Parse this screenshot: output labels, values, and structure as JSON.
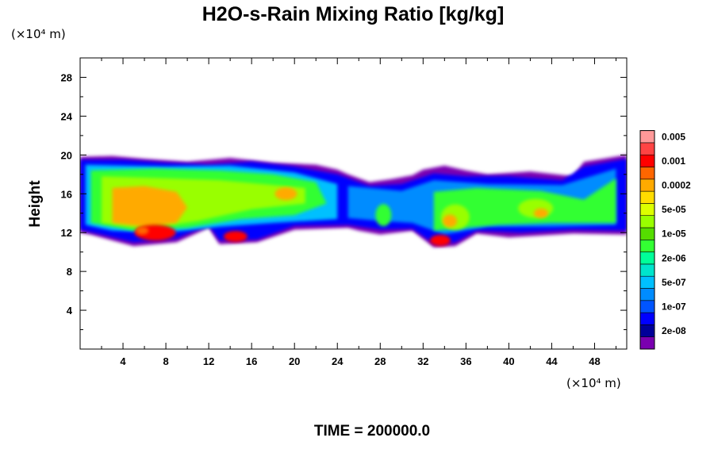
{
  "chart_data": {
    "type": "heatmap",
    "title": "H2O-s-Rain Mixing Ratio [kg/kg]",
    "ylabel": "Height",
    "xunit": "(×10⁴ m)",
    "yunit": "(×10⁴ m)",
    "xlim": [
      0,
      51
    ],
    "ylim": [
      0,
      30
    ],
    "xticks": [
      4,
      8,
      12,
      16,
      20,
      24,
      28,
      32,
      36,
      40,
      44,
      48
    ],
    "xtick_labels": [
      "4",
      "8",
      "12",
      "16",
      "20",
      "24",
      "28",
      "32",
      "36",
      "40",
      "44",
      "48"
    ],
    "yticks": [
      4,
      8,
      12,
      16,
      20,
      24,
      28
    ],
    "ytick_labels": [
      "4",
      "8",
      "12",
      "16",
      "20",
      "24",
      "28"
    ],
    "time_label": "TIME = 200000.0",
    "colorbar": {
      "colors": [
        "#7a00b0",
        "#000099",
        "#0000ff",
        "#0055ff",
        "#008cff",
        "#00c0ff",
        "#00e5cc",
        "#00ff99",
        "#33ff33",
        "#55dd00",
        "#99ff00",
        "#ddff00",
        "#ffdd00",
        "#ffaa00",
        "#ff6600",
        "#ff0000",
        "#ff4444",
        "#ff9999"
      ],
      "labels": [
        {
          "index": 1,
          "text": "2e-08"
        },
        {
          "index": 3,
          "text": "1e-07"
        },
        {
          "index": 5,
          "text": "5e-07"
        },
        {
          "index": 7,
          "text": "2e-06"
        },
        {
          "index": 9,
          "text": "1e-05"
        },
        {
          "index": 11,
          "text": "5e-05"
        },
        {
          "index": 13,
          "text": "0.0002"
        },
        {
          "index": 15,
          "text": "0.001"
        },
        {
          "index": 17,
          "text": "0.005"
        }
      ]
    },
    "cloud_regions": [
      {
        "x0": 0,
        "x1": 12,
        "y_bottom": 11,
        "y_top": 19.8,
        "max_level": "0.005"
      },
      {
        "x0": 12,
        "x1": 25,
        "y_bottom": 12.5,
        "y_top": 19.5,
        "max_level": "0.0002"
      },
      {
        "x0": 13,
        "x1": 16.5,
        "y_bottom": 10.8,
        "y_top": 13,
        "max_level": "0.005"
      },
      {
        "x0": 25,
        "x1": 31,
        "y_bottom": 11.5,
        "y_top": 17.5,
        "max_level": "2e-06"
      },
      {
        "x0": 31,
        "x1": 38,
        "y_bottom": 10.5,
        "y_top": 18.5,
        "max_level": "0.005"
      },
      {
        "x0": 38,
        "x1": 51,
        "y_bottom": 11.8,
        "y_top": 20,
        "max_level": "0.0002"
      }
    ]
  }
}
